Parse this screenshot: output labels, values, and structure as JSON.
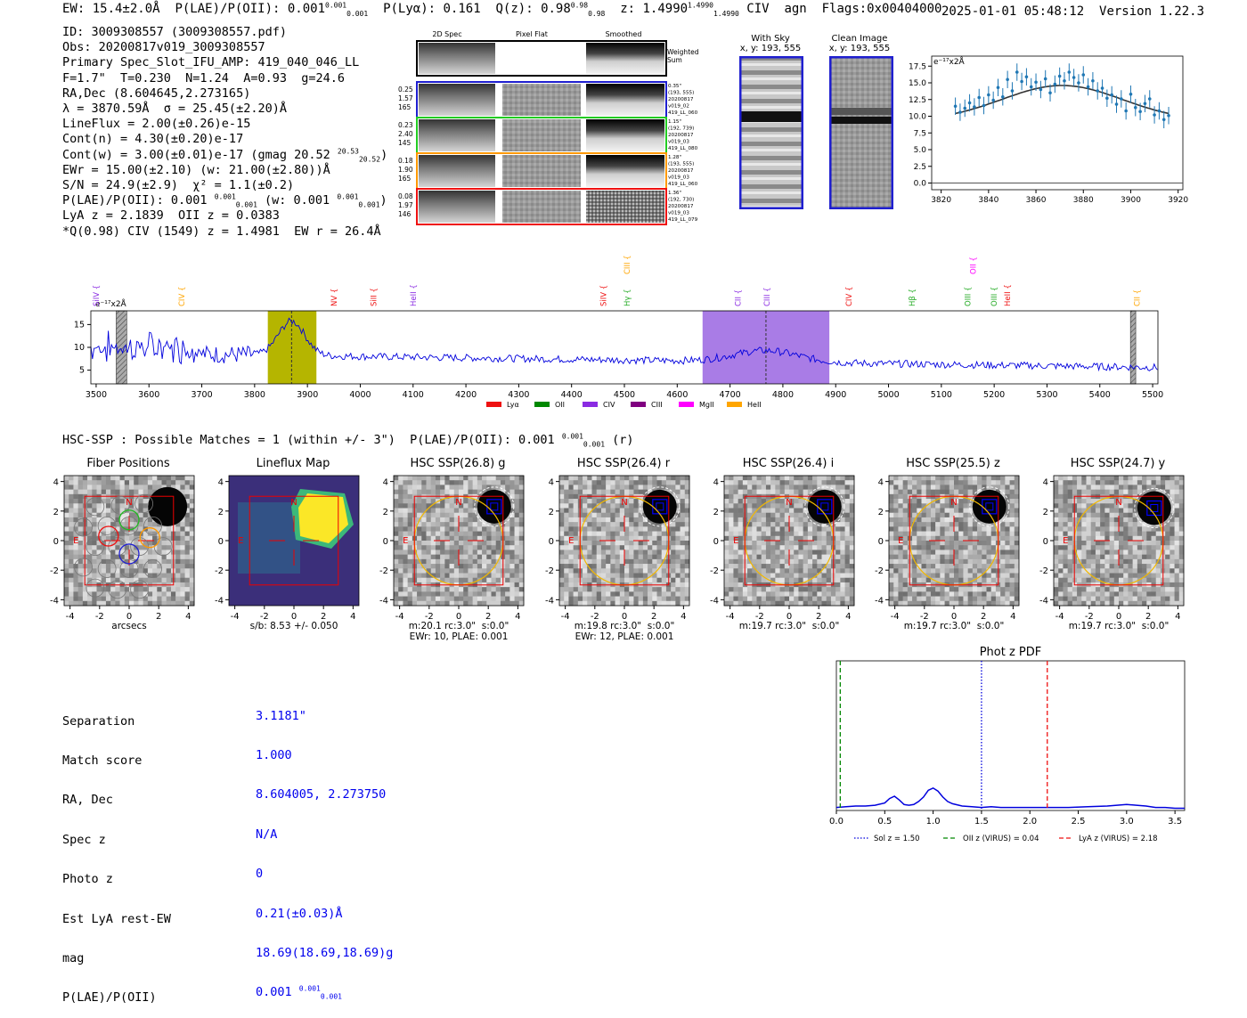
{
  "header": {
    "ew": "EW: 15.4±2.0Å",
    "plae": "P(LAE)/P(OII): 0.001",
    "plae_sup": "0.001",
    "plae_sub": "0.001",
    "plya": "P(Lyα): 0.161",
    "qz": "Q(z): 0.98",
    "qz_sup": "0.98",
    "qz_sub": "0.98",
    "z": "z: 1.4990",
    "z_sup": "1.4990",
    "z_sub": "1.4990",
    "line": "CIV",
    "agn": "agn",
    "flags": "Flags:0x00404000",
    "datetime": "2025-01-01 05:48:12",
    "version": "Version 1.22.3"
  },
  "info": {
    "id": "ID: 3009308557 (3009308557.pdf)",
    "obs": "Obs: 20200817v019_3009308557",
    "primary": "Primary Spec_Slot_IFU_AMP: 419_040_046_LL",
    "fparams": "F=1.7\"  T=0.230  N=1.24  A=0.93  g=24.6",
    "radec": "RA,Dec (8.604645,2.273165)",
    "lambda": "λ = 3870.59Å  σ = 25.45(±2.20)Å",
    "lineflux": "LineFlux = 2.00(±0.26)e-15",
    "contn": "Cont(n) = 4.30(±0.20)e-17",
    "contw": "Cont(w) = 3.00(±0.01)e-17 (gmag 20.52",
    "contw_sup": "20.53",
    "contw_sub": "20.52",
    "ewr": "EWr = 15.00(±2.10) (w: 21.00(±2.80))Å",
    "sn": "S/N = 24.9(±2.9)  χ² = 1.1(±0.2)",
    "plae_a": "P(LAE)/P(OII): 0.001",
    "plae_a_sup": "0.001",
    "plae_a_sub": "0.001",
    "plae_w": "(w: 0.001",
    "plae_w_sup": "0.001",
    "plae_w_sub": "0.001",
    "lya": "LyA z = 2.1839  OII z = 0.0383",
    "qciv": "*Q(0.98) CIV (1549) z = 1.4981  EW r = 26.4Å"
  },
  "cutouts": {
    "col_titles": [
      "2D Spec",
      "Pixel Flat",
      "Smoothed"
    ],
    "weighted_sum": "Weighted Sum",
    "rows": [
      {
        "left": [
          "0.25",
          "1.57",
          "165"
        ],
        "right": [
          "0.35\"",
          "(193, 555)",
          "20200817",
          "v019_02",
          "419_LL_060"
        ],
        "color": "#1f1fd0"
      },
      {
        "left": [
          "0.23",
          "2.40",
          "145"
        ],
        "right": [
          "1.15\"",
          "(192, 739)",
          "20200817",
          "v019_03",
          "419_LL_080"
        ],
        "color": "#22cc22"
      },
      {
        "left": [
          "0.18",
          "1.90",
          "165"
        ],
        "right": [
          "1.28\"",
          "(193, 555)",
          "20200817",
          "v019_03",
          "419_LL_060"
        ],
        "color": "#ff9900"
      },
      {
        "left": [
          "0.08",
          "1.97",
          "146"
        ],
        "right": [
          "1.36\"",
          "(192, 730)",
          "20200817",
          "v019_03",
          "419_LL_079"
        ],
        "color": "#ee1111"
      }
    ],
    "with_sky_title": "With Sky",
    "with_sky_xy": "x, y: 193, 555",
    "clean_title": "Clean Image",
    "clean_xy": "x, y: 193, 555"
  },
  "zoom_chart": {
    "type": "scatter",
    "unit_label": "e⁻¹⁷x2Å",
    "xlim": [
      3816,
      3922
    ],
    "ylim": [
      -1,
      19
    ],
    "xticks": [
      3820,
      3840,
      3860,
      3880,
      3900,
      3920
    ],
    "yticks": [
      0.0,
      2.5,
      5.0,
      7.5,
      10.0,
      12.5,
      15.0,
      17.5
    ],
    "ytick_labels": [
      "0.0",
      "2.5",
      "5.0",
      "7.5",
      "10.0",
      "12.5",
      "15.0",
      "17.5"
    ],
    "fit": {
      "center": 3871,
      "sigma": 25.45,
      "amp": 5.3,
      "base": 9.3
    },
    "points": [
      [
        3826,
        11.5
      ],
      [
        3828,
        10.6
      ],
      [
        3830,
        11.2
      ],
      [
        3832,
        12.0
      ],
      [
        3834,
        11.4
      ],
      [
        3836,
        12.8
      ],
      [
        3838,
        11.6
      ],
      [
        3840,
        13.2
      ],
      [
        3842,
        12.4
      ],
      [
        3844,
        14.3
      ],
      [
        3846,
        12.9
      ],
      [
        3848,
        15.5
      ],
      [
        3850,
        13.8
      ],
      [
        3852,
        16.6
      ],
      [
        3854,
        15.2
      ],
      [
        3856,
        15.9
      ],
      [
        3858,
        14.4
      ],
      [
        3860,
        15.1
      ],
      [
        3862,
        14.0
      ],
      [
        3864,
        15.6
      ],
      [
        3866,
        13.5
      ],
      [
        3868,
        14.8
      ],
      [
        3870,
        16.0
      ],
      [
        3872,
        15.3
      ],
      [
        3874,
        16.6
      ],
      [
        3876,
        15.8
      ],
      [
        3878,
        15.0
      ],
      [
        3880,
        16.2
      ],
      [
        3882,
        14.4
      ],
      [
        3884,
        15.3
      ],
      [
        3886,
        13.8
      ],
      [
        3888,
        14.2
      ],
      [
        3890,
        12.7
      ],
      [
        3892,
        13.2
      ],
      [
        3894,
        11.8
      ],
      [
        3896,
        12.6
      ],
      [
        3898,
        10.8
      ],
      [
        3900,
        13.3
      ],
      [
        3902,
        11.3
      ],
      [
        3904,
        10.7
      ],
      [
        3906,
        11.9
      ],
      [
        3908,
        12.6
      ],
      [
        3910,
        10.2
      ],
      [
        3912,
        10.8
      ],
      [
        3914,
        9.5
      ],
      [
        3916,
        10.1
      ]
    ]
  },
  "spectrum_chart": {
    "type": "line",
    "unit_label": "e⁻¹⁷x2Å",
    "xlim": [
      3490,
      5510
    ],
    "ylim": [
      2,
      18
    ],
    "xticks": [
      3500,
      3600,
      3700,
      3800,
      3900,
      4000,
      4100,
      4200,
      4300,
      4400,
      4500,
      4600,
      4700,
      4800,
      4900,
      5000,
      5100,
      5200,
      5300,
      5400,
      5500
    ],
    "yticks": [
      5,
      10,
      15
    ],
    "highlights": [
      {
        "from": 3825,
        "to": 3917,
        "color": "#b5b500"
      },
      {
        "from": 4648,
        "to": 4888,
        "color": "#a97ce6"
      }
    ],
    "hatched": [
      {
        "from": 3538,
        "to": 3558
      },
      {
        "from": 5458,
        "to": 5468
      }
    ],
    "dashed_lines": [
      3870,
      4768
    ],
    "series_color": "#0000dd",
    "line_markers": [
      {
        "label": "SiIV",
        "x": 3500,
        "color": "#8a2be2",
        "row": 2
      },
      {
        "label": "CIV",
        "x": 3662,
        "color": "#ffa500",
        "row": 2
      },
      {
        "label": "NV",
        "x": 3950,
        "color": "#ee1111",
        "row": 2
      },
      {
        "label": "SiII",
        "x": 4025,
        "color": "#ee1111",
        "row": 2
      },
      {
        "label": "HeII",
        "x": 4100,
        "color": "#8a2be2",
        "row": 2
      },
      {
        "label": "SiIV",
        "x": 4460,
        "color": "#ee1111",
        "row": 2
      },
      {
        "label": "CIII",
        "x": 4505,
        "color": "#ffa500",
        "row": 0
      },
      {
        "label": "Hγ",
        "x": 4505,
        "color": "#22aa22",
        "row": 2
      },
      {
        "label": "CII",
        "x": 4715,
        "color": "#8a2be2",
        "row": 2
      },
      {
        "label": "CIII",
        "x": 4770,
        "color": "#8a2be2",
        "row": 2
      },
      {
        "label": "CIV",
        "x": 4925,
        "color": "#ee1111",
        "row": 2
      },
      {
        "label": "Hβ",
        "x": 5045,
        "color": "#22aa22",
        "row": 2
      },
      {
        "label": "OII",
        "x": 5160,
        "color": "#ff00ff",
        "row": 0
      },
      {
        "label": "OIII",
        "x": 5150,
        "color": "#22aa22",
        "row": 2
      },
      {
        "label": "OIII",
        "x": 5200,
        "color": "#22aa22",
        "row": 2
      },
      {
        "label": "HeII",
        "x": 5225,
        "color": "#ee1111",
        "row": 2
      },
      {
        "label": "CII",
        "x": 5470,
        "color": "#ffa500",
        "row": 2
      }
    ],
    "legend": [
      {
        "label": "Lyα",
        "color": "#ee1111"
      },
      {
        "label": "OII",
        "color": "#008800"
      },
      {
        "label": "CIV",
        "color": "#8a2be2"
      },
      {
        "label": "CIII",
        "color": "#800080"
      },
      {
        "label": "MgII",
        "color": "#ff00ff"
      },
      {
        "label": "HeII",
        "color": "#ffa500"
      }
    ]
  },
  "hsc": {
    "summary": "HSC-SSP : Possible Matches = 1 (within +/- 3\")  P(LAE)/P(OII): 0.001",
    "summary_sup": "0.001",
    "summary_sub": "0.001",
    "summary_tail": "(r)",
    "panels": [
      {
        "title": "Fiber Positions",
        "cap1": "arcsecs",
        "cap2": ""
      },
      {
        "title": "Lineflux Map",
        "cap1": "s/b: 8.53 +/- 0.050",
        "cap2": ""
      },
      {
        "title": "HSC SSP(26.8) g",
        "cap1": "m:20.1 rc:3.0\"  s:0.0\"",
        "cap2": "EWr: 10, PLAE: 0.001"
      },
      {
        "title": "HSC SSP(26.4) r",
        "cap1": "m:19.8 rc:3.0\"  s:0.0\"",
        "cap2": "EWr: 12, PLAE: 0.001"
      },
      {
        "title": "HSC SSP(26.4) i",
        "cap1": "m:19.7 rc:3.0\"  s:0.0\"",
        "cap2": ""
      },
      {
        "title": "HSC SSP(25.5) z",
        "cap1": "m:19.7 rc:3.0\"  s:0.0\"",
        "cap2": ""
      },
      {
        "title": "HSC SSP(24.7) y",
        "cap1": "m:19.7 rc:3.0\"  s:0.0\"",
        "cap2": ""
      }
    ],
    "axis_ticks": [
      "-4",
      "-2",
      "0",
      "2",
      "4"
    ],
    "north": "N",
    "east": "E"
  },
  "match": {
    "labels": [
      "Separation",
      "Match score",
      "RA, Dec",
      "Spec z",
      "Photo z",
      "Est LyA rest-EW",
      "mag",
      "P(LAE)/P(OII)"
    ],
    "values": [
      "3.1181\"",
      "1.000",
      "8.604005, 2.273750",
      "N/A",
      "0",
      "0.21(±0.03)Å",
      "18.69(18.69,18.69)g",
      "0.001"
    ],
    "plae_sup": "0.001",
    "plae_sub": "0.001"
  },
  "photz_chart": {
    "type": "line",
    "title": "Phot z PDF",
    "xlim": [
      0,
      3.6
    ],
    "ylim": [
      0,
      1
    ],
    "xticks": [
      0.0,
      0.5,
      1.0,
      1.5,
      2.0,
      2.5,
      3.0,
      3.5
    ],
    "xtick_labels": [
      "0.0",
      "0.5",
      "1.0",
      "1.5",
      "2.0",
      "2.5",
      "3.0",
      "3.5"
    ],
    "pdf": [
      [
        0.0,
        0.02
      ],
      [
        0.1,
        0.025
      ],
      [
        0.2,
        0.03
      ],
      [
        0.3,
        0.03
      ],
      [
        0.4,
        0.035
      ],
      [
        0.5,
        0.05
      ],
      [
        0.55,
        0.08
      ],
      [
        0.6,
        0.095
      ],
      [
        0.65,
        0.07
      ],
      [
        0.7,
        0.04
      ],
      [
        0.75,
        0.035
      ],
      [
        0.8,
        0.04
      ],
      [
        0.85,
        0.06
      ],
      [
        0.9,
        0.09
      ],
      [
        0.95,
        0.135
      ],
      [
        1.0,
        0.15
      ],
      [
        1.05,
        0.13
      ],
      [
        1.1,
        0.09
      ],
      [
        1.15,
        0.06
      ],
      [
        1.2,
        0.045
      ],
      [
        1.3,
        0.03
      ],
      [
        1.4,
        0.025
      ],
      [
        1.5,
        0.02
      ],
      [
        1.6,
        0.025
      ],
      [
        1.7,
        0.02
      ],
      [
        1.8,
        0.02
      ],
      [
        2.0,
        0.02
      ],
      [
        2.2,
        0.02
      ],
      [
        2.4,
        0.02
      ],
      [
        2.6,
        0.025
      ],
      [
        2.8,
        0.03
      ],
      [
        2.9,
        0.035
      ],
      [
        3.0,
        0.04
      ],
      [
        3.1,
        0.035
      ],
      [
        3.2,
        0.03
      ],
      [
        3.3,
        0.02
      ],
      [
        3.4,
        0.02
      ],
      [
        3.5,
        0.015
      ],
      [
        3.6,
        0.015
      ]
    ],
    "markers": [
      {
        "label": "Sol z = 1.50",
        "x": 1.5,
        "color": "#0000dd",
        "style": "dotted"
      },
      {
        "label": "OII z (VIRUS) = 0.04",
        "x": 0.04,
        "color": "#008800",
        "style": "dashed"
      },
      {
        "label": "LyA z (VIRUS) = 2.18",
        "x": 2.18,
        "color": "#ee1111",
        "style": "dashed"
      }
    ]
  }
}
